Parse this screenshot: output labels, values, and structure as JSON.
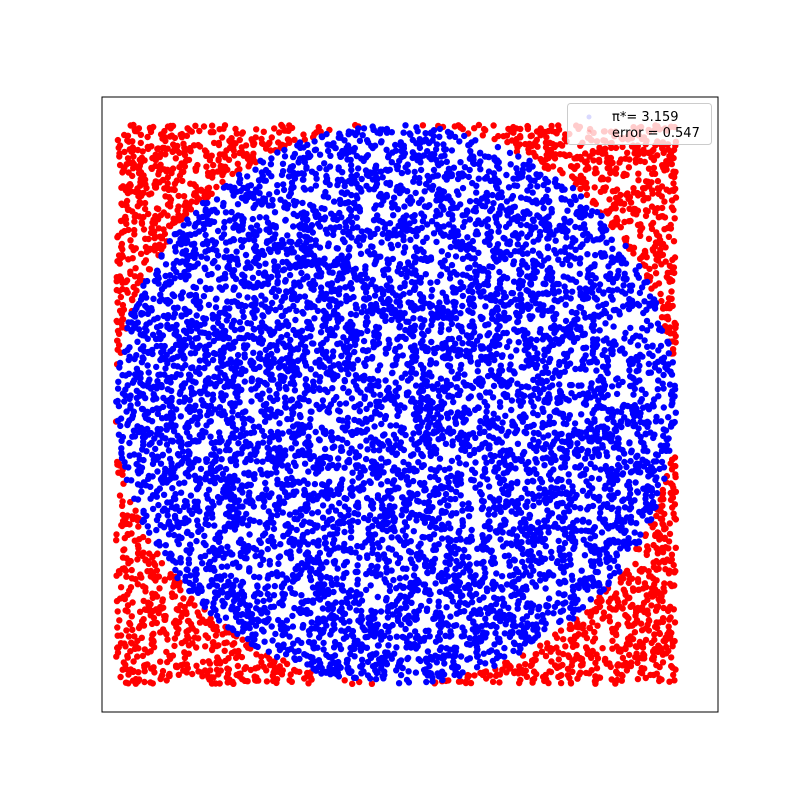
{
  "chart_data": {
    "type": "scatter",
    "title": "",
    "xlabel": "",
    "ylabel": "",
    "xlim": [
      -1.05,
      1.15
    ],
    "ylim": [
      -1.1,
      1.1
    ],
    "grid": false,
    "ticks": "hidden",
    "legend_position": "top-right",
    "legend": [
      {
        "label": "π*= 3.159"
      },
      {
        "label": "error = 0.547"
      }
    ],
    "series": [
      {
        "region": "outside unit circle",
        "x_range": [
          -1,
          1
        ],
        "y_range": [
          -1,
          1
        ],
        "color": "#ff0000"
      },
      {
        "region": "inside unit circle",
        "x_range": [
          -1,
          1
        ],
        "y_range": [
          -1,
          1
        ],
        "color": "#0000ff"
      }
    ],
    "circle": {
      "center": [
        0,
        0
      ],
      "radius": 1
    }
  }
}
